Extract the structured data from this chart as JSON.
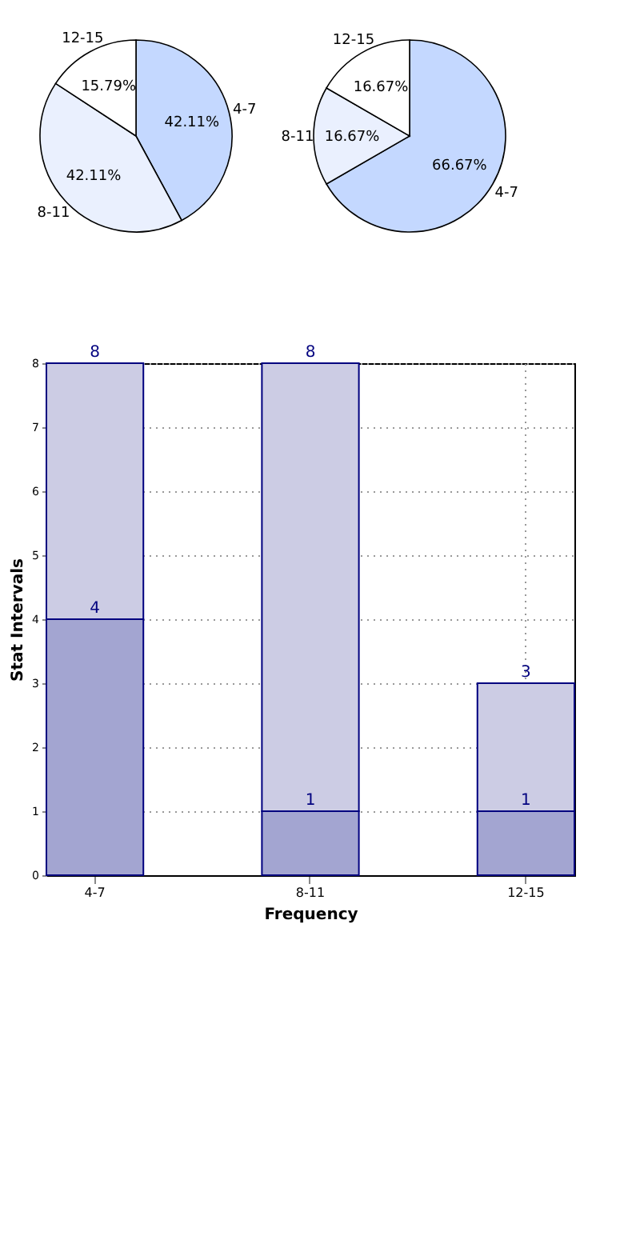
{
  "chart_data": [
    {
      "type": "pie",
      "categories": [
        "4-7",
        "8-11",
        "12-15"
      ],
      "values": [
        42.11,
        42.11,
        15.79
      ],
      "colors": [
        "#c4d8ff",
        "#eaf0fe",
        "#ffffff"
      ],
      "value_labels": [
        "42.11%",
        "42.11%",
        "15.79%"
      ]
    },
    {
      "type": "pie",
      "categories": [
        "4-7",
        "8-11",
        "12-15"
      ],
      "values": [
        66.67,
        16.67,
        16.67
      ],
      "colors": [
        "#c4d8ff",
        "#eaf0fe",
        "#ffffff"
      ],
      "value_labels": [
        "66.67%",
        "16.67%",
        "16.67%"
      ]
    },
    {
      "type": "bar",
      "categories": [
        "4-7",
        "8-11",
        "12-15"
      ],
      "stacked": true,
      "series": [
        {
          "color": "#a3a5d1",
          "values": [
            4,
            1,
            1
          ],
          "value_labels": [
            "4",
            "1",
            "1"
          ]
        },
        {
          "color": "#cccce4",
          "values": [
            4,
            7,
            2
          ]
        }
      ],
      "totals": [
        "8",
        "8",
        "3"
      ],
      "ylim": [
        0,
        8
      ],
      "yticks": [
        0,
        1,
        2,
        3,
        4,
        5,
        6,
        7,
        8
      ],
      "xlabel": "Frequency",
      "ylabel": "Stat Intervals",
      "grid": true
    }
  ]
}
